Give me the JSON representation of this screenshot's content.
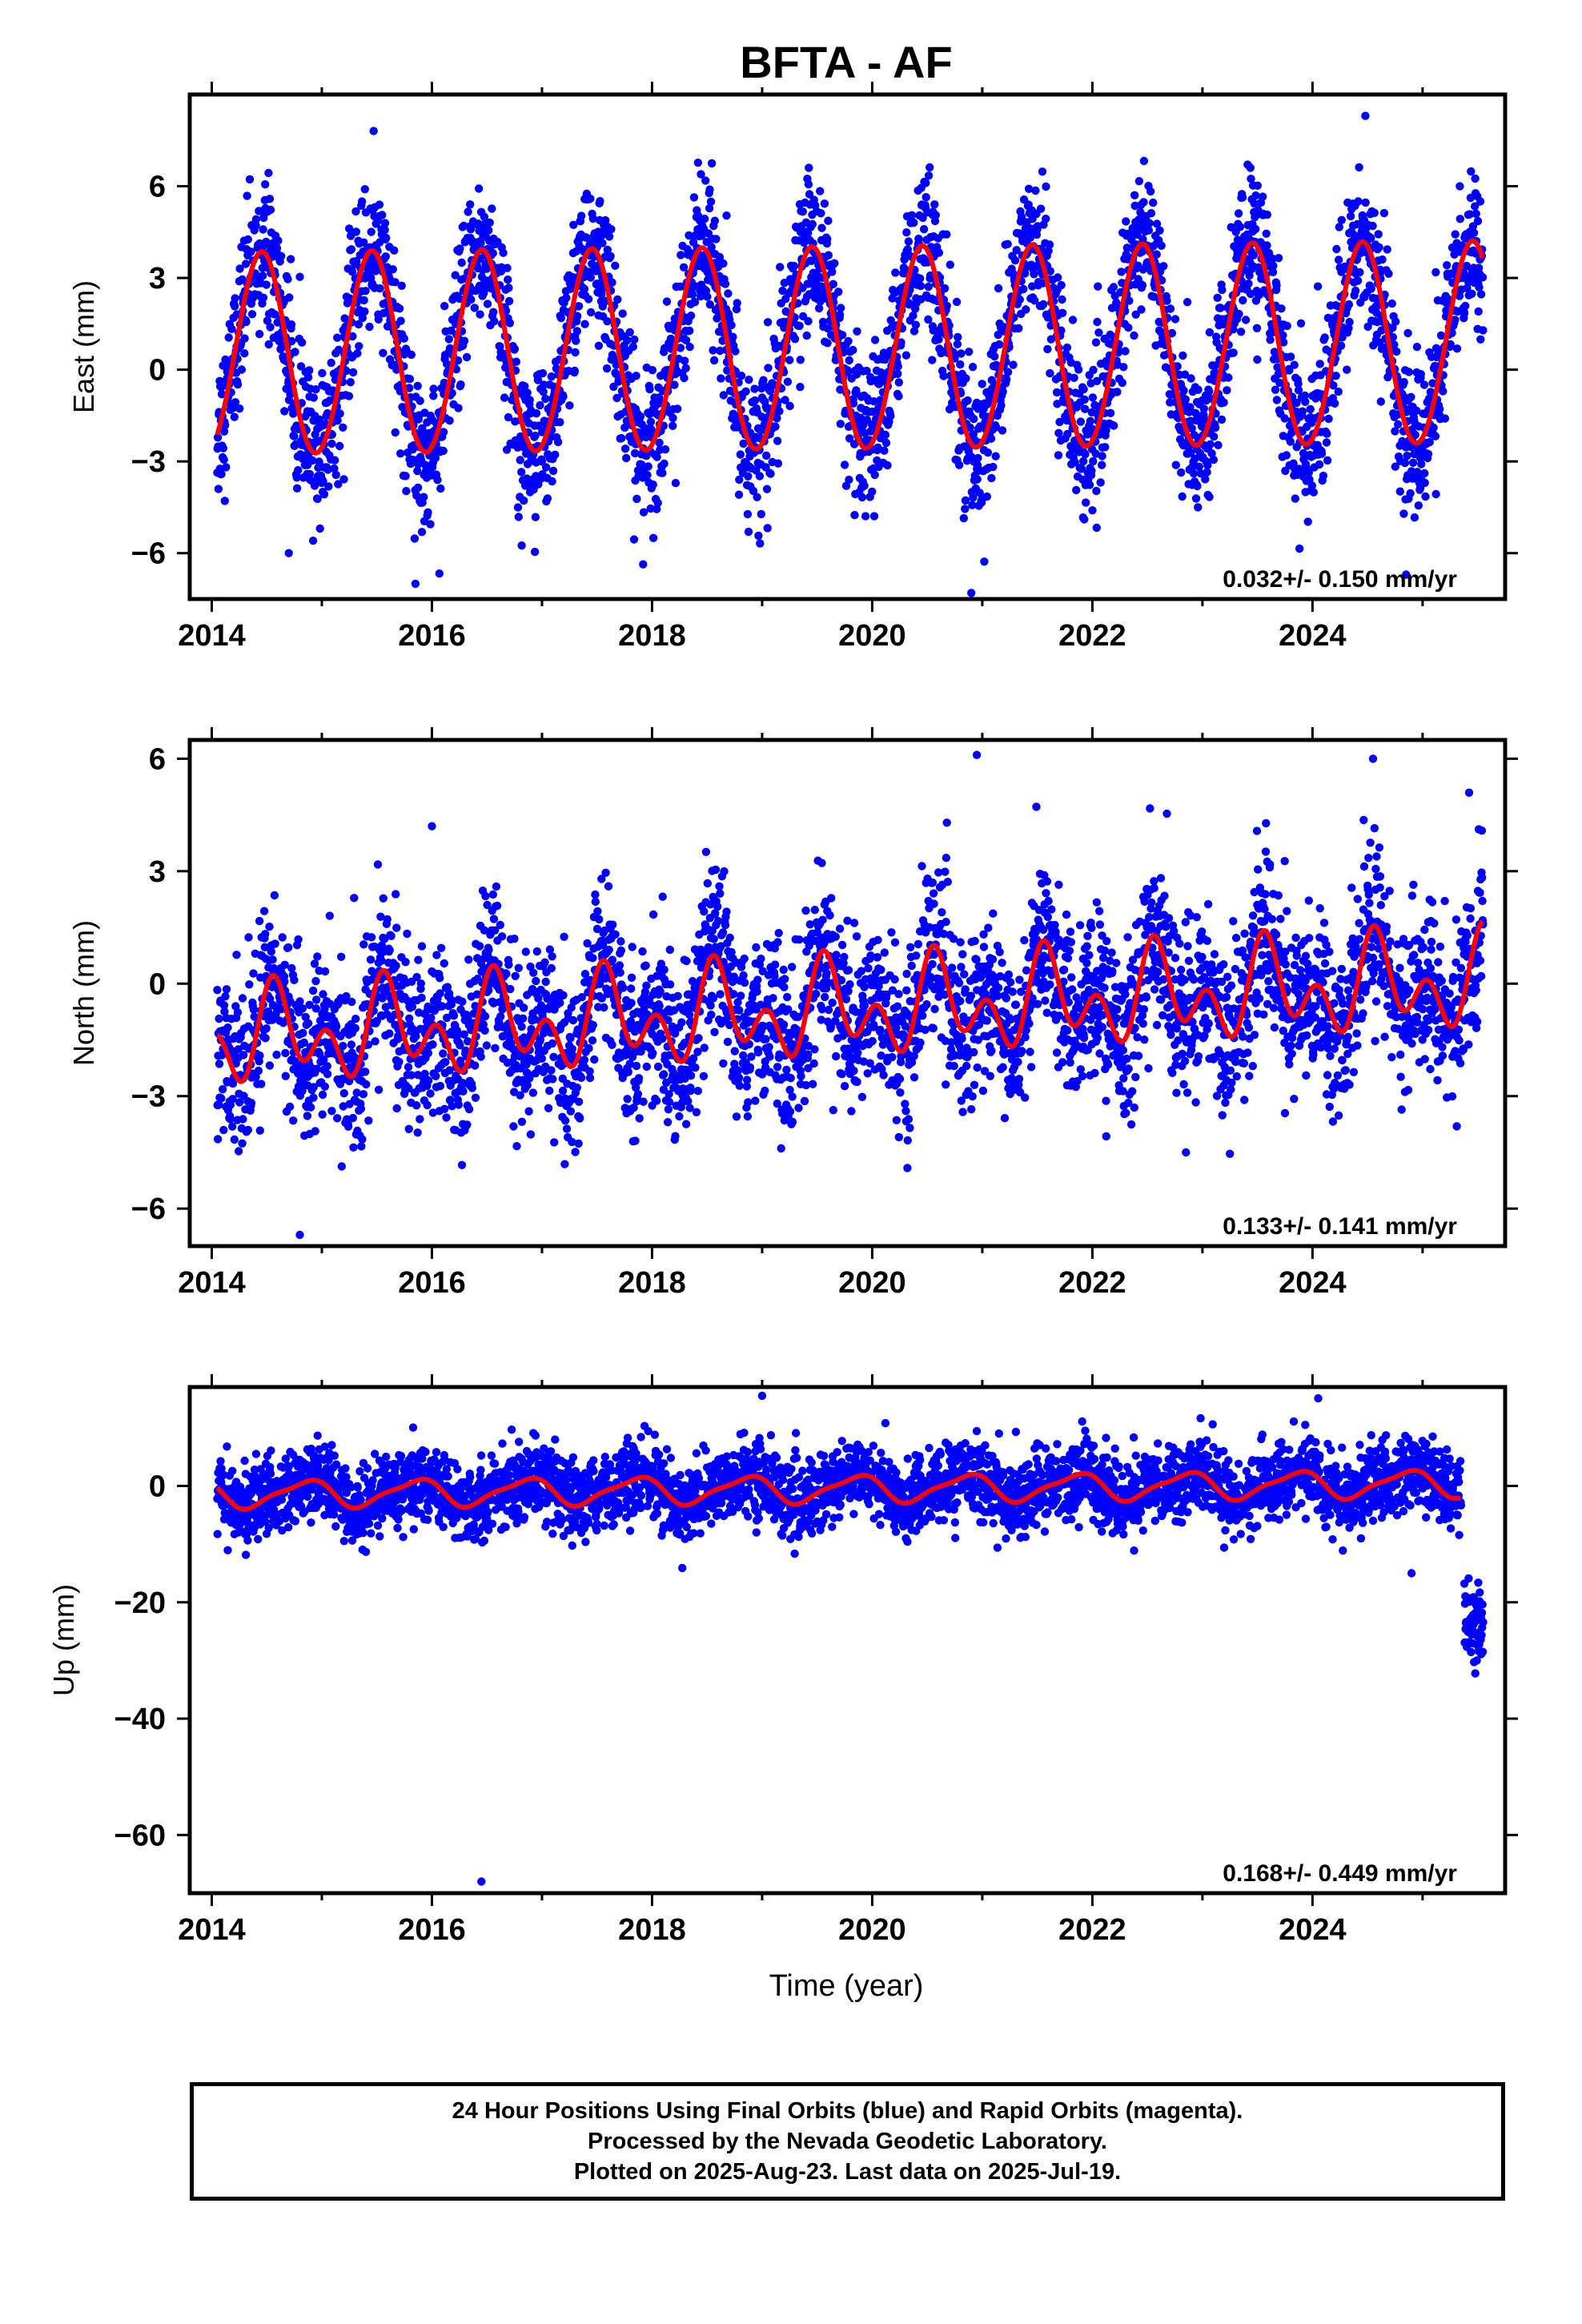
{
  "title": "BFTA - AF",
  "xlabel": "Time (year)",
  "footer": {
    "line1": "24 Hour Positions Using Final Orbits (blue) and Rapid Orbits (magenta).",
    "line2": "Processed by the Nevada Geodetic Laboratory.",
    "line3": "Plotted on 2025-Aug-23. Last data on 2025-Jul-19."
  },
  "colors": {
    "data_points": "#0000ff",
    "fit_line": "#ff0000",
    "frame": "#000000"
  },
  "chart_data": [
    {
      "type": "scatter",
      "name": "east",
      "ylabel": "East (mm)",
      "rate_annotation": "0.032+/- 0.150 mm/yr",
      "xlim": [
        2013.8,
        2025.75
      ],
      "ylim": [
        -7.5,
        9
      ],
      "xticks": [
        2014,
        2016,
        2018,
        2020,
        2022,
        2024
      ],
      "yticks": [
        -6,
        -3,
        0,
        3,
        6
      ],
      "ytick_labels": [
        "−6",
        "−3",
        "0",
        "3",
        "6"
      ],
      "data_range": [
        2014.05,
        2025.55
      ],
      "fit": {
        "offset": 0.65,
        "rate": 0.032,
        "annual_amp": 3.3,
        "annual_peak": 0.45,
        "semiannual_amp": 0.1
      },
      "scatter_sd": 1.2,
      "outliers": [
        [
          2024.48,
          8.3
        ],
        [
          2015.85,
          -7.0
        ],
        [
          2020.9,
          -7.3
        ],
        [
          2024.85,
          -6.7
        ],
        [
          2014.7,
          -6.0
        ]
      ]
    },
    {
      "type": "scatter",
      "name": "north",
      "ylabel": "North (mm)",
      "rate_annotation": "0.133+/- 0.141 mm/yr",
      "xlim": [
        2013.8,
        2025.75
      ],
      "ylim": [
        -7,
        6.5
      ],
      "xticks": [
        2014,
        2016,
        2018,
        2020,
        2022,
        2024
      ],
      "yticks": [
        -6,
        -3,
        0,
        3,
        6
      ],
      "ytick_labels": [
        "−6",
        "−3",
        "0",
        "3",
        "6"
      ],
      "data_range": [
        2014.05,
        2025.55
      ],
      "fit": {
        "offset": -0.7,
        "rate": 0.133,
        "annual_amp": 0.8,
        "annual_peak": 0.6,
        "semiannual_amp": 0.85,
        "semiannual_peak": 0.55
      },
      "scatter_sd": 1.1,
      "outliers": [
        [
          2020.95,
          6.1
        ],
        [
          2024.55,
          6.0
        ],
        [
          2014.8,
          -6.7
        ],
        [
          2022.85,
          -4.5
        ],
        [
          2016.0,
          4.2
        ]
      ]
    },
    {
      "type": "scatter",
      "name": "up",
      "ylabel": "Up (mm)",
      "rate_annotation": "0.168+/- 0.449 mm/yr",
      "xlim": [
        2013.8,
        2025.75
      ],
      "ylim": [
        -70,
        17
      ],
      "xticks": [
        2014,
        2016,
        2018,
        2020,
        2022,
        2024
      ],
      "yticks": [
        -60,
        -40,
        -20,
        0
      ],
      "ytick_labels": [
        "−60",
        "−40",
        "−20",
        "0"
      ],
      "data_range": [
        2014.05,
        2025.35
      ],
      "fit": {
        "offset": -0.5,
        "rate": 0.168,
        "annual_amp": 2.2,
        "annual_peak": 0.85,
        "semiannual_amp": 0.6
      },
      "scatter_sd": 3.2,
      "offset_cluster": {
        "x_start": 2025.38,
        "x_end": 2025.55,
        "y_center": -23,
        "spread": 4
      },
      "outliers": [
        [
          2016.45,
          -68
        ],
        [
          2019.0,
          15.5
        ],
        [
          2024.9,
          -15
        ]
      ]
    }
  ]
}
